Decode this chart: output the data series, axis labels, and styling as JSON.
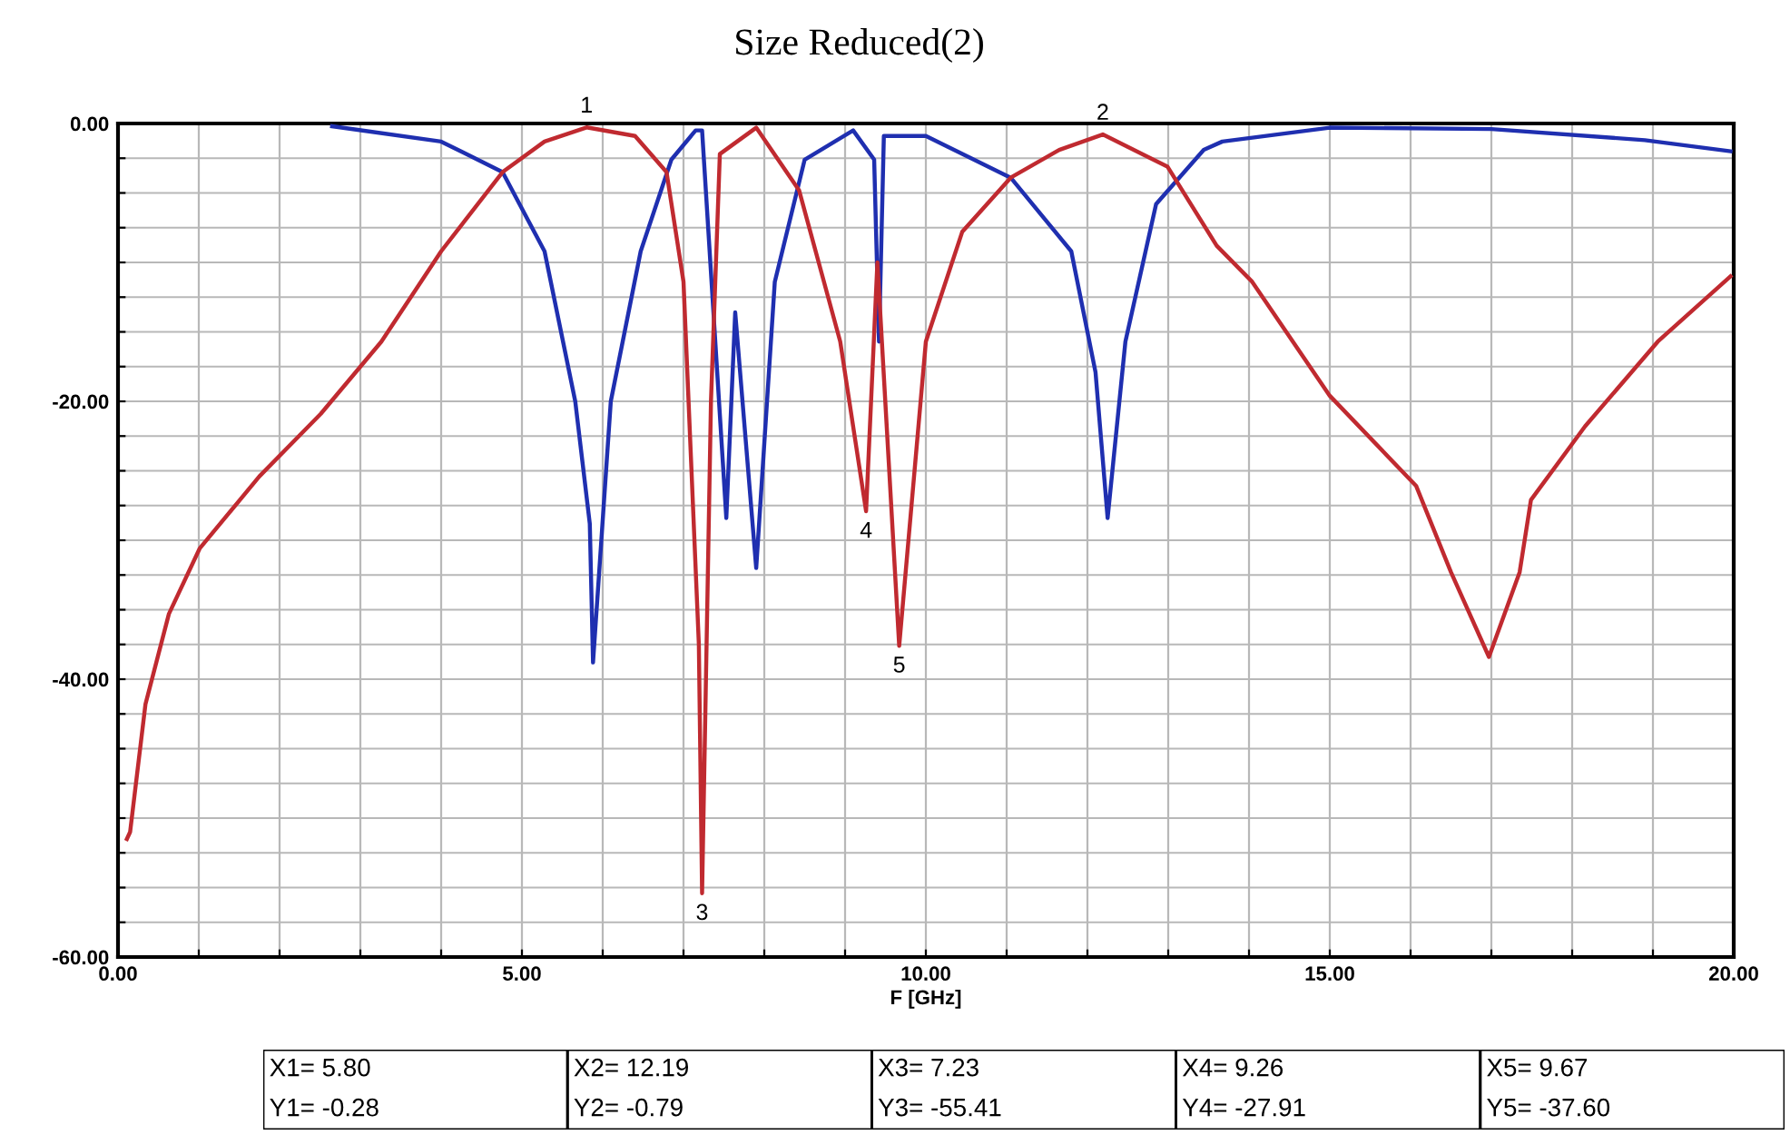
{
  "chart_data": {
    "type": "line",
    "title": "Size Reduced(2)",
    "xlabel": "F [GHz]",
    "xlim": [
      0,
      20
    ],
    "ylim": [
      -60,
      0
    ],
    "xticks": [
      {
        "value": 0,
        "label": "0.00"
      },
      {
        "value": 1,
        "label": null
      },
      {
        "value": 2,
        "label": null
      },
      {
        "value": 3,
        "label": null
      },
      {
        "value": 4,
        "label": null
      },
      {
        "value": 5,
        "label": "5.00"
      },
      {
        "value": 6,
        "label": null
      },
      {
        "value": 7,
        "label": null
      },
      {
        "value": 8,
        "label": null
      },
      {
        "value": 9,
        "label": null
      },
      {
        "value": 10,
        "label": "10.00"
      },
      {
        "value": 11,
        "label": null
      },
      {
        "value": 12,
        "label": null
      },
      {
        "value": 13,
        "label": null
      },
      {
        "value": 14,
        "label": null
      },
      {
        "value": 15,
        "label": "15.00"
      },
      {
        "value": 16,
        "label": null
      },
      {
        "value": 17,
        "label": null
      },
      {
        "value": 18,
        "label": null
      },
      {
        "value": 19,
        "label": null
      },
      {
        "value": 20,
        "label": "20.00"
      }
    ],
    "yticks": [
      {
        "value": 0,
        "label": "0.00"
      },
      {
        "value": -2.5,
        "label": null
      },
      {
        "value": -5,
        "label": null
      },
      {
        "value": -7.5,
        "label": null
      },
      {
        "value": -10,
        "label": null
      },
      {
        "value": -12.5,
        "label": null
      },
      {
        "value": -15,
        "label": null
      },
      {
        "value": -17.5,
        "label": null
      },
      {
        "value": -20,
        "label": "-20.00"
      },
      {
        "value": -22.5,
        "label": null
      },
      {
        "value": -25,
        "label": null
      },
      {
        "value": -27.5,
        "label": null
      },
      {
        "value": -30,
        "label": null
      },
      {
        "value": -32.5,
        "label": null
      },
      {
        "value": -35,
        "label": null
      },
      {
        "value": -37.5,
        "label": null
      },
      {
        "value": -40,
        "label": "-40.00"
      },
      {
        "value": -42.5,
        "label": null
      },
      {
        "value": -45,
        "label": null
      },
      {
        "value": -47.5,
        "label": null
      },
      {
        "value": -50,
        "label": null
      },
      {
        "value": -52.5,
        "label": null
      },
      {
        "value": -55,
        "label": null
      },
      {
        "value": -57.5,
        "label": null
      },
      {
        "value": -60,
        "label": "-60.00"
      }
    ],
    "grid": true,
    "marker": "none",
    "line_style": "solid",
    "legend": false,
    "series": [
      {
        "color": "#c02a30",
        "x": [
          0.11,
          0.15,
          0.34,
          0.63,
          1.01,
          1.75,
          2.51,
          3.26,
          4.0,
          4.76,
          5.28,
          5.8,
          6.4,
          6.79,
          7.0,
          7.19,
          7.23,
          7.34,
          7.45,
          7.9,
          8.43,
          8.94,
          9.26,
          9.4,
          9.67,
          10.0,
          10.45,
          11.05,
          11.65,
          12.19,
          12.99,
          13.6,
          14.04,
          15.0,
          16.07,
          16.5,
          16.97,
          17.35,
          17.49,
          18.16,
          19.06,
          19.96
        ],
        "values": [
          -51.5,
          -51,
          -41.8,
          -35.3,
          -30.6,
          -25.4,
          -20.9,
          -15.7,
          -9.2,
          -3.5,
          -1.3,
          -0.28,
          -0.9,
          -3.5,
          -11.4,
          -37.5,
          -55.41,
          -20,
          -2.2,
          -0.3,
          -4.8,
          -15.7,
          -27.91,
          -10,
          -37.6,
          -15.7,
          -7.8,
          -3.9,
          -1.9,
          -0.79,
          -3.1,
          -8.8,
          -11.4,
          -19.6,
          -26.1,
          -32.3,
          -38.4,
          -32.3,
          -27.1,
          -21.8,
          -15.7,
          -11
        ]
      },
      {
        "color": "#1f2fb0",
        "x": [
          2.65,
          4.0,
          4.76,
          5.28,
          5.66,
          5.84,
          5.88,
          6.1,
          6.47,
          6.85,
          7.15,
          7.23,
          7.53,
          7.64,
          7.9,
          8.13,
          8.5,
          9.1,
          9.36,
          9.42,
          9.48,
          10.0,
          11.05,
          11.8,
          12.1,
          12.25,
          12.47,
          12.85,
          13.44,
          13.67,
          15.0,
          17.0,
          18.9,
          19.96
        ],
        "values": [
          -0.2,
          -1.3,
          -3.5,
          -9.2,
          -20,
          -28.8,
          -38.8,
          -20,
          -9.2,
          -2.6,
          -0.5,
          -0.5,
          -28.4,
          -13.6,
          -32,
          -11.4,
          -2.6,
          -0.5,
          -2.6,
          -15.7,
          -0.9,
          -0.9,
          -3.9,
          -9.2,
          -17.9,
          -28.4,
          -15.7,
          -5.8,
          -1.9,
          -1.3,
          -0.3,
          -0.4,
          -1.2,
          -2.0
        ]
      }
    ],
    "annotations": [
      {
        "text": "1",
        "x": 5.8,
        "y": -0.28
      },
      {
        "text": "2",
        "x": 12.19,
        "y": -0.79
      },
      {
        "text": "3",
        "x": 7.23,
        "y": -55.41
      },
      {
        "text": "4",
        "x": 9.26,
        "y": -27.91
      },
      {
        "text": "5",
        "x": 9.67,
        "y": -37.6
      },
      "X1= 5.80",
      "Y1= -0.28",
      "X2= 12.19",
      "Y2= -0.79",
      "X3= 7.23",
      "Y3= -55.41",
      "X4= 9.26",
      "Y4= -27.91",
      "X5= 9.67",
      "Y5= -37.60"
    ]
  }
}
